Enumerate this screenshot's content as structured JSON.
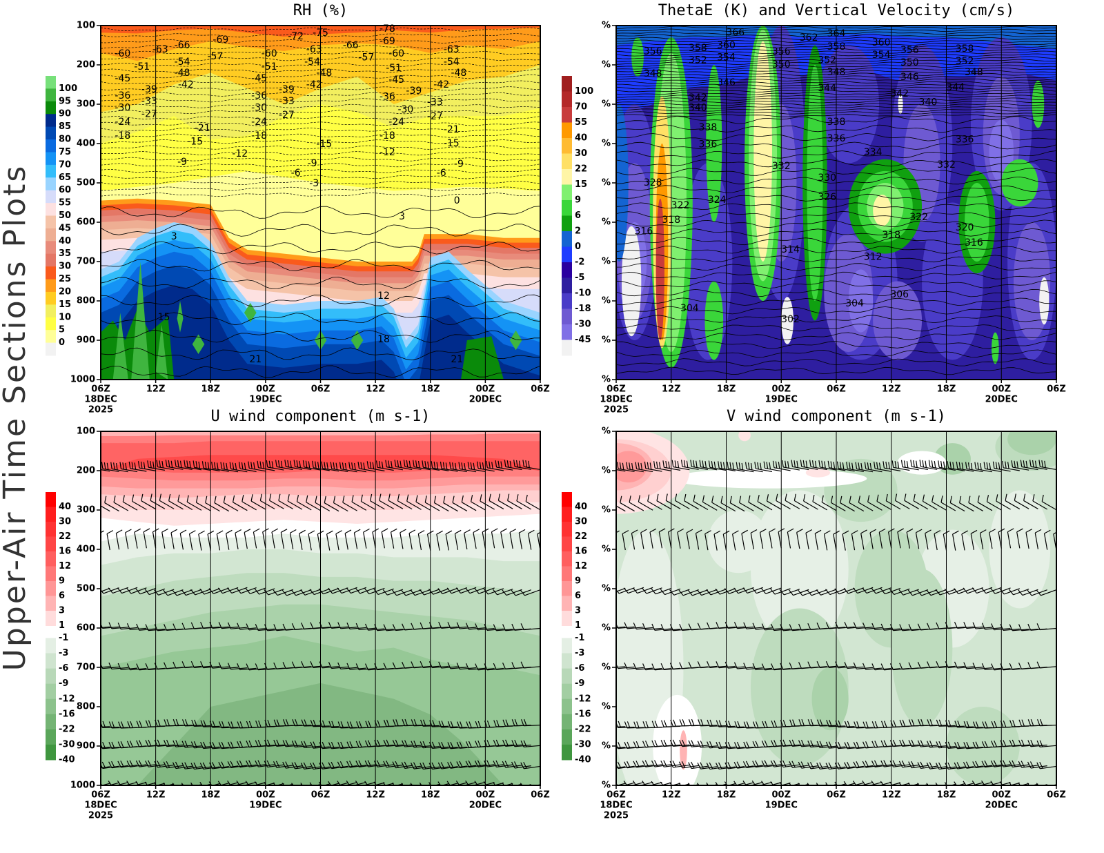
{
  "page_title": "Upper-Air Time Sections Plots",
  "axes": {
    "time_ticks": [
      "06Z",
      "12Z",
      "18Z",
      "00Z",
      "06Z",
      "12Z",
      "18Z",
      "00Z",
      "06Z"
    ],
    "date_labels": [
      {
        "index": 0,
        "text": "18DEC"
      },
      {
        "index": 3,
        "text": "19DEC"
      },
      {
        "index": 7,
        "text": "20DEC"
      }
    ],
    "year": "2025",
    "pressure_ticks": [
      "100",
      "200",
      "300",
      "400",
      "500",
      "600",
      "700",
      "800",
      "900",
      "1000"
    ],
    "right_pressure_tick_label": "%",
    "time_range_hours": [
      0,
      48
    ],
    "pressure_range_hpa": [
      100,
      1000
    ]
  },
  "chart_data": [
    {
      "type": "heatmap",
      "title": "RH (%)",
      "colorbar": {
        "colors": [
          "#77e07a",
          "#3fb53f",
          "#0a8a0a",
          "#002b8c",
          "#0049b3",
          "#0a6be0",
          "#1493f5",
          "#33bdfa",
          "#99d4ff",
          "#d6dcfa",
          "#fde1e1",
          "#f5c3a8",
          "#eeae93",
          "#e88b7b",
          "#e47766",
          "#fa5a1c",
          "#ff9b1a",
          "#ffcc22",
          "#f2ef5f",
          "#ffff44",
          "#ffff99",
          "#f2f2f2"
        ],
        "labels": [
          "100",
          "95",
          "90",
          "85",
          "80",
          "75",
          "70",
          "65",
          "60",
          "55",
          "50",
          "45",
          "40",
          "35",
          "30",
          "25",
          "20",
          "15",
          "10",
          "5",
          "0"
        ]
      },
      "contour_labels": [
        {
          "h": 2.4,
          "p": 172,
          "v": "-60"
        },
        {
          "h": 6.5,
          "p": 161,
          "v": "-63"
        },
        {
          "h": 8.9,
          "p": 151,
          "v": "-66"
        },
        {
          "h": 13.1,
          "p": 137,
          "v": "-69"
        },
        {
          "h": 21.3,
          "p": 128,
          "v": "-72"
        },
        {
          "h": 24,
          "p": 119,
          "v": "-75"
        },
        {
          "h": 31.3,
          "p": 109,
          "v": "-78"
        },
        {
          "h": 31.3,
          "p": 140,
          "v": "-69"
        },
        {
          "h": 27.3,
          "p": 151,
          "v": "-66"
        },
        {
          "h": 18.4,
          "p": 172,
          "v": "-60"
        },
        {
          "h": 23.3,
          "p": 161,
          "v": "-63"
        },
        {
          "h": 38.3,
          "p": 161,
          "v": "-63"
        },
        {
          "h": 12.5,
          "p": 179,
          "v": "-57"
        },
        {
          "h": 29,
          "p": 182,
          "v": "-57"
        },
        {
          "h": 32.3,
          "p": 172,
          "v": "-60"
        },
        {
          "h": 8.9,
          "p": 193,
          "v": "-54"
        },
        {
          "h": 23.1,
          "p": 193,
          "v": "-54"
        },
        {
          "h": 38.3,
          "p": 193,
          "v": "-54"
        },
        {
          "h": 4.5,
          "p": 205,
          "v": "-51"
        },
        {
          "h": 18.4,
          "p": 205,
          "v": "-51"
        },
        {
          "h": 32,
          "p": 209,
          "v": "-51"
        },
        {
          "h": 8.9,
          "p": 221,
          "v": "-48"
        },
        {
          "h": 24.4,
          "p": 221,
          "v": "-48"
        },
        {
          "h": 39.1,
          "p": 221,
          "v": "-48"
        },
        {
          "h": 2.4,
          "p": 235,
          "v": "-45"
        },
        {
          "h": 17.3,
          "p": 235,
          "v": "-45"
        },
        {
          "h": 32.3,
          "p": 239,
          "v": "-45"
        },
        {
          "h": 9.3,
          "p": 251,
          "v": "-42"
        },
        {
          "h": 23.3,
          "p": 251,
          "v": "-42"
        },
        {
          "h": 37.2,
          "p": 251,
          "v": "-42"
        },
        {
          "h": 5.3,
          "p": 263,
          "v": "-39"
        },
        {
          "h": 20.3,
          "p": 263,
          "v": "-39"
        },
        {
          "h": 34.2,
          "p": 267,
          "v": "-39"
        },
        {
          "h": 2.4,
          "p": 279,
          "v": "-36"
        },
        {
          "h": 17.3,
          "p": 279,
          "v": "-36"
        },
        {
          "h": 31.3,
          "p": 282,
          "v": "-36"
        },
        {
          "h": 5.3,
          "p": 293,
          "v": "-33"
        },
        {
          "h": 20.3,
          "p": 293,
          "v": "-33"
        },
        {
          "h": 36.5,
          "p": 296,
          "v": "-33"
        },
        {
          "h": 2.4,
          "p": 310,
          "v": "-30"
        },
        {
          "h": 17.3,
          "p": 310,
          "v": "-30"
        },
        {
          "h": 33.3,
          "p": 314,
          "v": "-30"
        },
        {
          "h": 5.3,
          "p": 325,
          "v": "-27"
        },
        {
          "h": 20.3,
          "p": 328,
          "v": "-27"
        },
        {
          "h": 36.5,
          "p": 332,
          "v": "-27"
        },
        {
          "h": 2.4,
          "p": 346,
          "v": "-24"
        },
        {
          "h": 17.3,
          "p": 346,
          "v": "-24"
        },
        {
          "h": 32.3,
          "p": 346,
          "v": "-24"
        },
        {
          "h": 11.1,
          "p": 361,
          "v": "-21"
        },
        {
          "h": 38.3,
          "p": 365,
          "v": "-21"
        },
        {
          "h": 2.4,
          "p": 381,
          "v": "-18"
        },
        {
          "h": 17.3,
          "p": 381,
          "v": "-18"
        },
        {
          "h": 31.3,
          "p": 381,
          "v": "-18"
        },
        {
          "h": 10.3,
          "p": 396,
          "v": "-15"
        },
        {
          "h": 24.4,
          "p": 402,
          "v": "-15"
        },
        {
          "h": 38.3,
          "p": 400,
          "v": "-15"
        },
        {
          "h": 15.2,
          "p": 426,
          "v": "-12"
        },
        {
          "h": 31.3,
          "p": 423,
          "v": "-12"
        },
        {
          "h": 8.9,
          "p": 447,
          "v": "-9"
        },
        {
          "h": 23.1,
          "p": 451,
          "v": "-9"
        },
        {
          "h": 39.1,
          "p": 453,
          "v": "-9"
        },
        {
          "h": 21.3,
          "p": 475,
          "v": "-6"
        },
        {
          "h": 37.2,
          "p": 475,
          "v": "-6"
        },
        {
          "h": 23.3,
          "p": 502,
          "v": "-3"
        },
        {
          "h": 38.9,
          "p": 546,
          "v": "0"
        },
        {
          "h": 32.9,
          "p": 586,
          "v": "3"
        },
        {
          "h": 8,
          "p": 637,
          "v": "3"
        },
        {
          "h": 30.9,
          "p": 788,
          "v": "12"
        },
        {
          "h": 6.9,
          "p": 842,
          "v": "15"
        },
        {
          "h": 30.9,
          "p": 898,
          "v": "18"
        },
        {
          "h": 16.9,
          "p": 949,
          "v": "21"
        },
        {
          "h": 38.9,
          "p": 949,
          "v": "21"
        }
      ]
    },
    {
      "type": "heatmap",
      "title": "ThetaE (K) and Vertical Velocity (cm/s)",
      "colorbar": {
        "colors": [
          "#a01e1e",
          "#b42828",
          "#c83c3c",
          "#ff9900",
          "#ffbb33",
          "#ffe066",
          "#fff5a6",
          "#80f070",
          "#3ad63a",
          "#10a010",
          "#1464d2",
          "#1e3cff",
          "#2a00a0",
          "#2e1ea0",
          "#4a3cc8",
          "#6e5ad2",
          "#8070e6",
          "#f2f2f2"
        ],
        "labels": [
          "100",
          "70",
          "55",
          "40",
          "30",
          "22",
          "15",
          "9",
          "6",
          "2",
          "0",
          "-2",
          "-5",
          "-10",
          "-18",
          "-30",
          "-45"
        ]
      },
      "contour_labels": [
        {
          "h": 13,
          "p": 118,
          "v": "366"
        },
        {
          "h": 24,
          "p": 121,
          "v": "364"
        },
        {
          "h": 21,
          "p": 132,
          "v": "362"
        },
        {
          "h": 12,
          "p": 151,
          "v": "360"
        },
        {
          "h": 28.9,
          "p": 144,
          "v": "360"
        },
        {
          "h": 8.9,
          "p": 158,
          "v": "358"
        },
        {
          "h": 24,
          "p": 154,
          "v": "358"
        },
        {
          "h": 38,
          "p": 160,
          "v": "358"
        },
        {
          "h": 4,
          "p": 167,
          "v": "356"
        },
        {
          "h": 18,
          "p": 167,
          "v": "356"
        },
        {
          "h": 32,
          "p": 163,
          "v": "356"
        },
        {
          "h": 12,
          "p": 182,
          "v": "354"
        },
        {
          "h": 28.9,
          "p": 175,
          "v": "354"
        },
        {
          "h": 8.9,
          "p": 189,
          "v": "352"
        },
        {
          "h": 23,
          "p": 189,
          "v": "352"
        },
        {
          "h": 38,
          "p": 191,
          "v": "352"
        },
        {
          "h": 18,
          "p": 200,
          "v": "350"
        },
        {
          "h": 32,
          "p": 195,
          "v": "350"
        },
        {
          "h": 4,
          "p": 223,
          "v": "348"
        },
        {
          "h": 24,
          "p": 219,
          "v": "348"
        },
        {
          "h": 39,
          "p": 219,
          "v": "348"
        },
        {
          "h": 12,
          "p": 246,
          "v": "346"
        },
        {
          "h": 32,
          "p": 232,
          "v": "346"
        },
        {
          "h": 23,
          "p": 260,
          "v": "344"
        },
        {
          "h": 37,
          "p": 258,
          "v": "344"
        },
        {
          "h": 8.9,
          "p": 284,
          "v": "342"
        },
        {
          "h": 30.9,
          "p": 274,
          "v": "342"
        },
        {
          "h": 8.9,
          "p": 310,
          "v": "340"
        },
        {
          "h": 34,
          "p": 296,
          "v": "340"
        },
        {
          "h": 10,
          "p": 360,
          "v": "338"
        },
        {
          "h": 24,
          "p": 346,
          "v": "338"
        },
        {
          "h": 10,
          "p": 403,
          "v": "336"
        },
        {
          "h": 24,
          "p": 388,
          "v": "336"
        },
        {
          "h": 38,
          "p": 390,
          "v": "336"
        },
        {
          "h": 28,
          "p": 423,
          "v": "334"
        },
        {
          "h": 18,
          "p": 458,
          "v": "332"
        },
        {
          "h": 36,
          "p": 454,
          "v": "332"
        },
        {
          "h": 23,
          "p": 488,
          "v": "330"
        },
        {
          "h": 4,
          "p": 500,
          "v": "328"
        },
        {
          "h": 23,
          "p": 537,
          "v": "326"
        },
        {
          "h": 11,
          "p": 544,
          "v": "324"
        },
        {
          "h": 7,
          "p": 558,
          "v": "322"
        },
        {
          "h": 33,
          "p": 588,
          "v": "322"
        },
        {
          "h": 38,
          "p": 614,
          "v": "320"
        },
        {
          "h": 6,
          "p": 595,
          "v": "318"
        },
        {
          "h": 30,
          "p": 633,
          "v": "318"
        },
        {
          "h": 3,
          "p": 624,
          "v": "316"
        },
        {
          "h": 39,
          "p": 653,
          "v": "316"
        },
        {
          "h": 19,
          "p": 670,
          "v": "314"
        },
        {
          "h": 28,
          "p": 689,
          "v": "312"
        },
        {
          "h": 30.9,
          "p": 784,
          "v": "306"
        },
        {
          "h": 8,
          "p": 819,
          "v": "304"
        },
        {
          "h": 26,
          "p": 807,
          "v": "304"
        },
        {
          "h": 19,
          "p": 847,
          "v": "302"
        }
      ]
    },
    {
      "type": "heatmap",
      "title": "U wind component (m s-1)",
      "colorbar": {
        "colors": [
          "#ff0000",
          "#ff1e1e",
          "#ff3232",
          "#ff4646",
          "#ff5f5f",
          "#ff7878",
          "#ff9696",
          "#ffb4b4",
          "#ffdcdc",
          "#ffffff",
          "#e4efe4",
          "#cfe4cf",
          "#b8d8b8",
          "#a2cea2",
          "#8cc28c",
          "#74b474",
          "#5aa65a",
          "#3f963f",
          "#2a8a2a"
        ],
        "labels": [
          "40",
          "30",
          "22",
          "16",
          "12",
          "9",
          "6",
          "3",
          "1",
          "-1",
          "-3",
          "-6",
          "-9",
          "-12",
          "-16",
          "-22",
          "-30",
          "-40"
        ]
      },
      "wind_barb_rows": [
        {
          "p": 200,
          "direction_deg": 170,
          "speed_ticks": 3
        },
        {
          "p": 300,
          "direction_deg": 150,
          "speed_ticks": 1
        },
        {
          "p": 400,
          "direction_deg": 100,
          "speed_ticks": 1
        },
        {
          "p": 500,
          "direction_deg": 200,
          "speed_ticks": 1
        },
        {
          "p": 600,
          "direction_deg": 185,
          "speed_ticks": 1
        },
        {
          "p": 700,
          "direction_deg": 185,
          "speed_ticks": 1
        },
        {
          "p": 850,
          "direction_deg": 182,
          "speed_ticks": 2
        },
        {
          "p": 900,
          "direction_deg": 185,
          "speed_ticks": 2
        },
        {
          "p": 950,
          "direction_deg": 188,
          "speed_ticks": 2
        },
        {
          "p": 995,
          "direction_deg": 195,
          "speed_ticks": 1
        }
      ]
    },
    {
      "type": "heatmap",
      "title": "V wind component (m s-1)",
      "colorbar": {
        "colors": [
          "#ff0000",
          "#ff1e1e",
          "#ff3232",
          "#ff4646",
          "#ff5f5f",
          "#ff7878",
          "#ff9696",
          "#ffb4b4",
          "#ffdcdc",
          "#ffffff",
          "#e4efe4",
          "#cfe4cf",
          "#b8d8b8",
          "#a2cea2",
          "#8cc28c",
          "#74b474",
          "#5aa65a",
          "#3f963f",
          "#2a8a2a"
        ],
        "labels": [
          "40",
          "30",
          "22",
          "16",
          "12",
          "9",
          "6",
          "3",
          "1",
          "-1",
          "-3",
          "-6",
          "-9",
          "-12",
          "-16",
          "-22",
          "-30",
          "-40"
        ]
      },
      "wind_barb_rows": [
        {
          "p": 200,
          "direction_deg": 170,
          "speed_ticks": 3
        },
        {
          "p": 300,
          "direction_deg": 150,
          "speed_ticks": 1
        },
        {
          "p": 400,
          "direction_deg": 100,
          "speed_ticks": 1
        },
        {
          "p": 500,
          "direction_deg": 200,
          "speed_ticks": 1
        },
        {
          "p": 600,
          "direction_deg": 185,
          "speed_ticks": 1
        },
        {
          "p": 700,
          "direction_deg": 185,
          "speed_ticks": 1
        },
        {
          "p": 850,
          "direction_deg": 182,
          "speed_ticks": 2
        },
        {
          "p": 900,
          "direction_deg": 185,
          "speed_ticks": 2
        },
        {
          "p": 950,
          "direction_deg": 188,
          "speed_ticks": 2
        },
        {
          "p": 995,
          "direction_deg": 195,
          "speed_ticks": 1
        }
      ]
    }
  ]
}
